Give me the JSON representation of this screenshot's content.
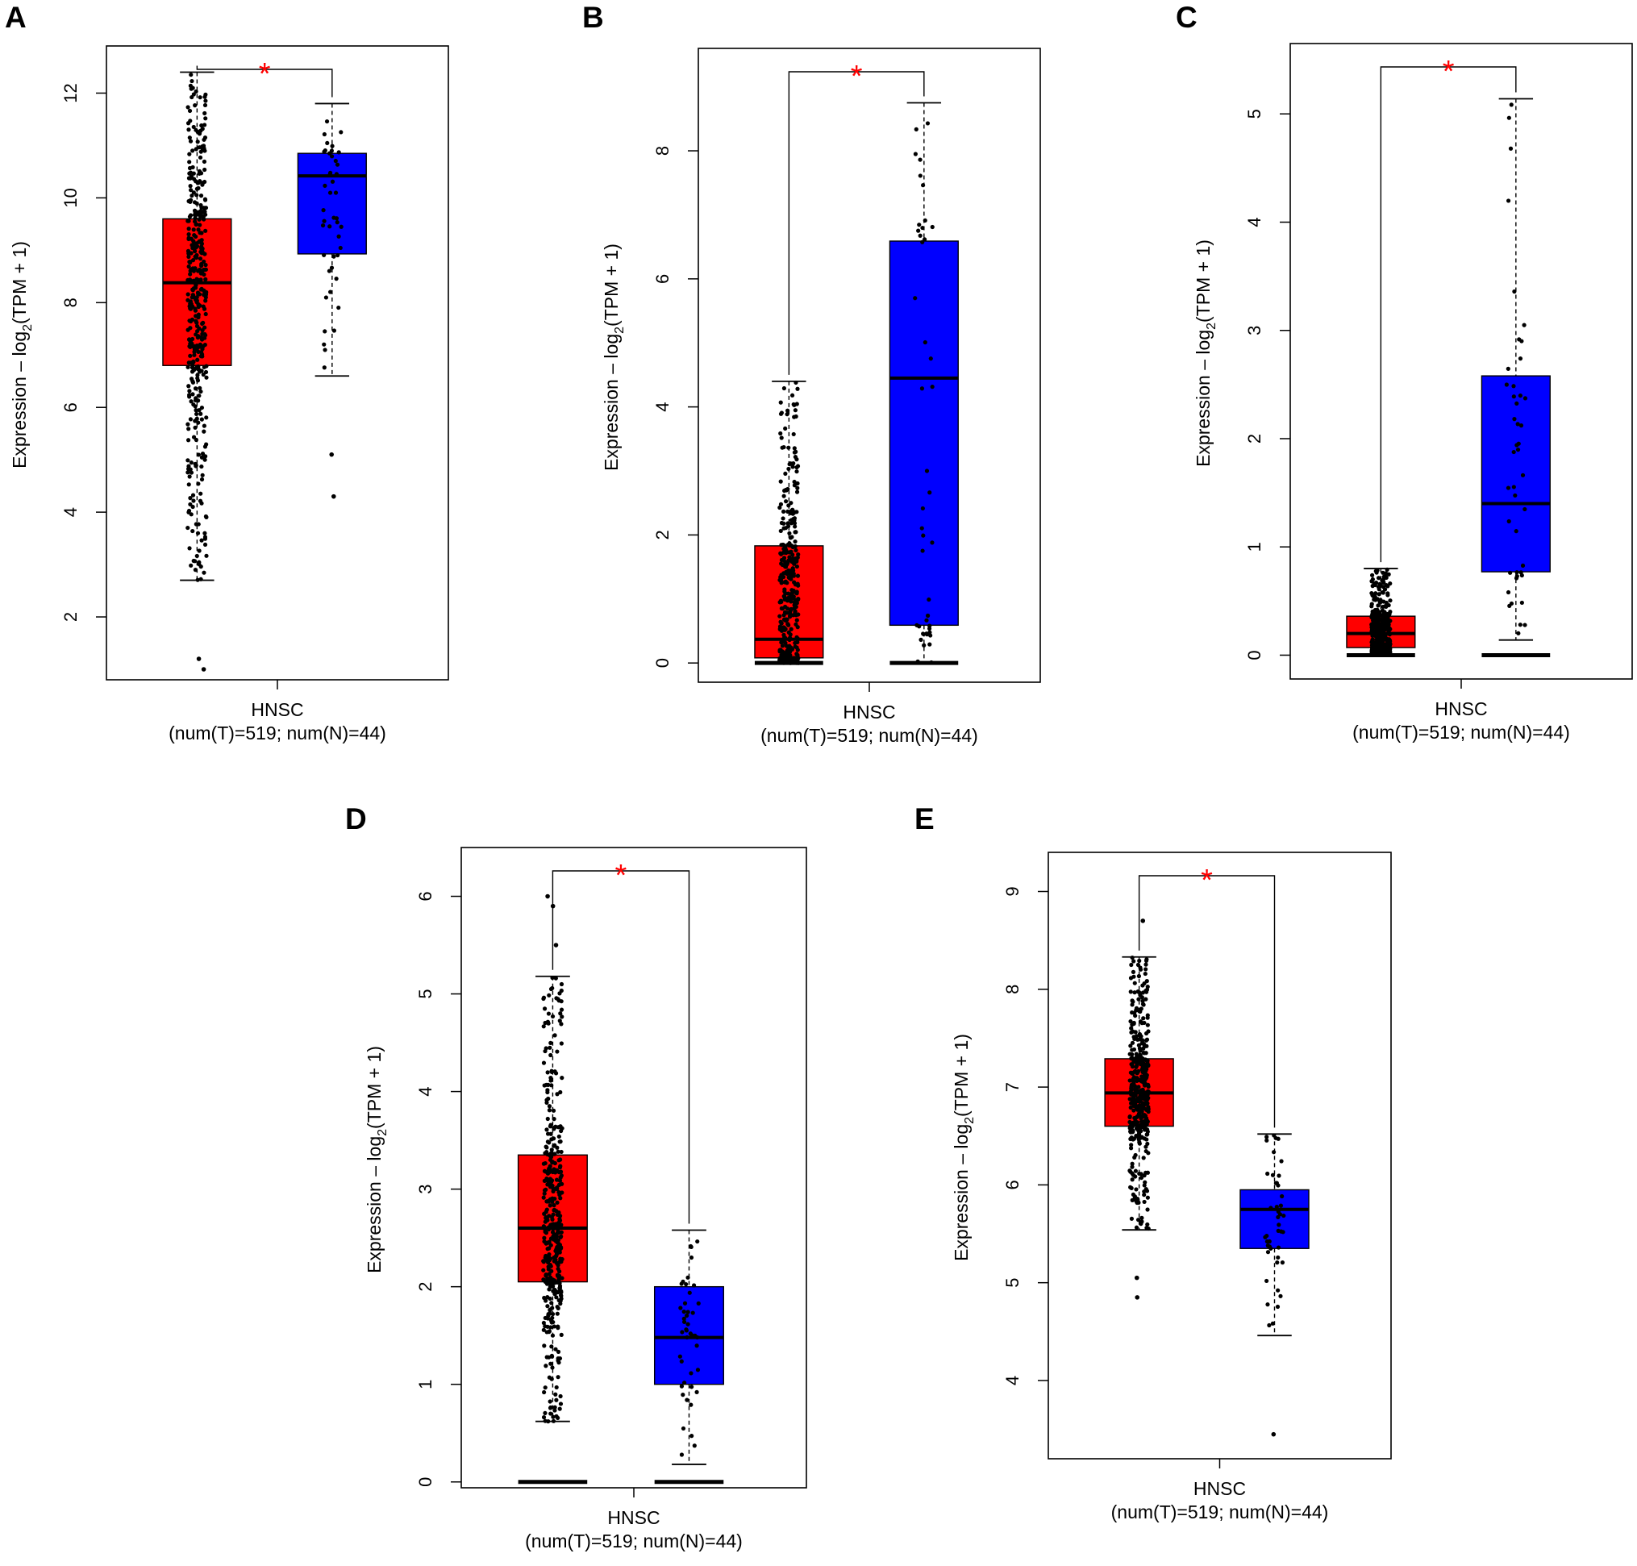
{
  "figure": {
    "chart_data": [
      {
        "panel": "A",
        "type": "boxplot",
        "ylabel_main": "Expression – log",
        "ylabel_sub": "2",
        "ylabel_tail": "(TPM + 1)",
        "yticks": [
          2,
          4,
          6,
          8,
          10,
          12
        ],
        "ylim": [
          0.8,
          12.9
        ],
        "xlabel": "HNSC",
        "xsublabel": "(num(T)=519; num(N)=44)",
        "significance": "*",
        "groups": [
          {
            "name": "T",
            "color": "#ff0000",
            "n": 519,
            "whisker_low": 2.7,
            "q1": 6.8,
            "median": 8.38,
            "q3": 9.6,
            "whisker_high": 12.4,
            "outliers": [
              1.2,
              1.0
            ],
            "zero_cluster": false
          },
          {
            "name": "N",
            "color": "#0000ff",
            "n": 44,
            "whisker_low": 6.6,
            "q1": 8.93,
            "median": 10.42,
            "q3": 10.85,
            "whisker_high": 11.8,
            "outliers": [
              5.1,
              4.3
            ],
            "zero_cluster": false
          }
        ]
      },
      {
        "panel": "B",
        "type": "boxplot",
        "ylabel_main": "Expression – log",
        "ylabel_sub": "2",
        "ylabel_tail": "(TPM + 1)",
        "yticks": [
          0,
          2,
          4,
          6,
          8
        ],
        "ylim": [
          -0.3,
          9.6
        ],
        "xlabel": "HNSC",
        "xsublabel": "(num(T)=519; num(N)=44)",
        "significance": "*",
        "groups": [
          {
            "name": "T",
            "color": "#ff0000",
            "n": 519,
            "whisker_low": 0,
            "q1": 0.08,
            "median": 0.37,
            "q3": 1.83,
            "whisker_high": 4.4,
            "outliers": [],
            "zero_cluster": true
          },
          {
            "name": "N",
            "color": "#0000ff",
            "n": 44,
            "whisker_low": 0,
            "q1": 0.59,
            "median": 4.45,
            "q3": 6.59,
            "whisker_high": 8.75,
            "outliers": [],
            "zero_cluster": true
          }
        ]
      },
      {
        "panel": "C",
        "type": "boxplot",
        "ylabel_main": "Expression – log",
        "ylabel_sub": "2",
        "ylabel_tail": "(TPM + 1)",
        "yticks": [
          0,
          1,
          2,
          3,
          4,
          5
        ],
        "ylim": [
          -0.22,
          5.65
        ],
        "xlabel": "HNSC",
        "xsublabel": "(num(T)=519; num(N)=44)",
        "significance": "*",
        "groups": [
          {
            "name": "T",
            "color": "#ff0000",
            "n": 519,
            "whisker_low": 0,
            "q1": 0.07,
            "median": 0.2,
            "q3": 0.36,
            "whisker_high": 0.8,
            "outliers": [],
            "zero_cluster": true
          },
          {
            "name": "N",
            "color": "#0000ff",
            "n": 44,
            "whisker_low": 0.14,
            "q1": 0.77,
            "median": 1.4,
            "q3": 2.58,
            "whisker_high": 5.14,
            "outliers": [],
            "zero_cluster": true
          }
        ]
      },
      {
        "panel": "D",
        "type": "boxplot",
        "ylabel_main": "Expression – log",
        "ylabel_sub": "2",
        "ylabel_tail": "(TPM + 1)",
        "yticks": [
          0,
          1,
          2,
          3,
          4,
          5,
          6
        ],
        "ylim": [
          -0.06,
          6.5
        ],
        "xlabel": "HNSC",
        "xsublabel": "(num(T)=519; num(N)=44)",
        "significance": "*",
        "groups": [
          {
            "name": "T",
            "color": "#ff0000",
            "n": 519,
            "whisker_low": 0.62,
            "q1": 2.05,
            "median": 2.6,
            "q3": 3.35,
            "whisker_high": 5.18,
            "outliers": [
              5.5,
              5.9,
              6.0
            ],
            "zero_cluster": true
          },
          {
            "name": "N",
            "color": "#0000ff",
            "n": 44,
            "whisker_low": 0.18,
            "q1": 1.0,
            "median": 1.48,
            "q3": 2.0,
            "whisker_high": 2.58,
            "outliers": [],
            "zero_cluster": true
          }
        ]
      },
      {
        "panel": "E",
        "type": "boxplot",
        "ylabel_main": "Expression – log",
        "ylabel_sub": "2",
        "ylabel_tail": "(TPM + 1)",
        "yticks": [
          4,
          5,
          6,
          7,
          8,
          9
        ],
        "ylim": [
          3.2,
          9.4
        ],
        "xlabel": "HNSC",
        "xsublabel": "(num(T)=519; num(N)=44)",
        "significance": "*",
        "groups": [
          {
            "name": "T",
            "color": "#ff0000",
            "n": 519,
            "whisker_low": 5.54,
            "q1": 6.6,
            "median": 6.94,
            "q3": 7.29,
            "whisker_high": 8.33,
            "outliers": [
              8.7,
              4.85,
              5.05
            ],
            "zero_cluster": false
          },
          {
            "name": "N",
            "color": "#0000ff",
            "n": 44,
            "whisker_low": 4.46,
            "q1": 5.35,
            "median": 5.75,
            "q3": 5.95,
            "whisker_high": 6.52,
            "outliers": [
              3.45
            ],
            "zero_cluster": false
          }
        ]
      }
    ]
  }
}
